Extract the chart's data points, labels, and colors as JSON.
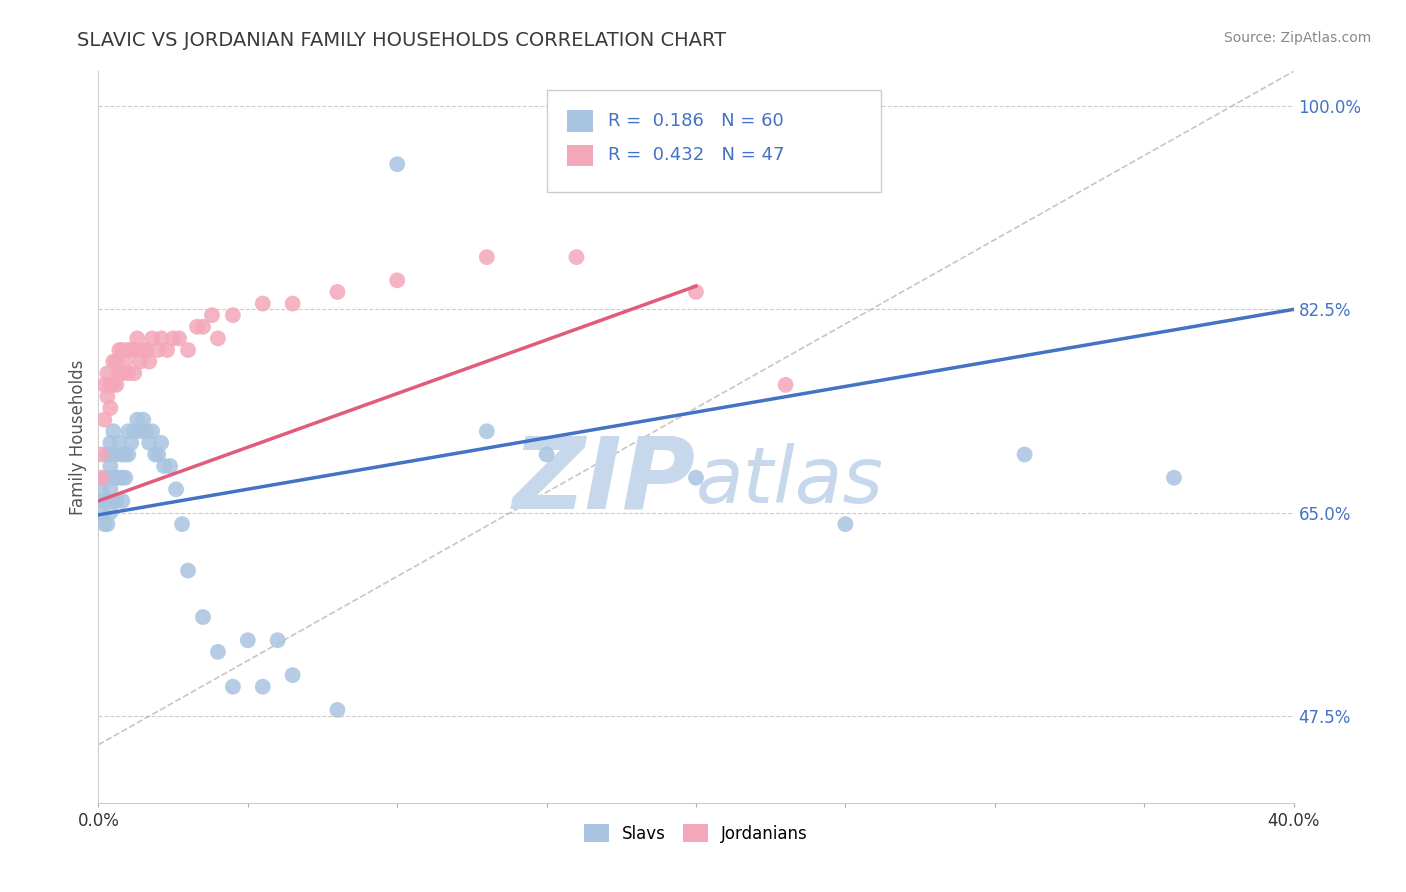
{
  "title": "SLAVIC VS JORDANIAN FAMILY HOUSEHOLDS CORRELATION CHART",
  "source": "Source: ZipAtlas.com",
  "ylabel": "Family Households",
  "xlim": [
    0.0,
    0.4
  ],
  "ylim": [
    0.4,
    1.03
  ],
  "ytick_positions": [
    0.475,
    0.65,
    0.825,
    1.0
  ],
  "ytick_labels": [
    "47.5%",
    "65.0%",
    "82.5%",
    "100.0%"
  ],
  "slavs_R": 0.186,
  "slavs_N": 60,
  "jordanians_R": 0.432,
  "jordanians_N": 47,
  "slavs_color": "#a8c4e0",
  "jordanians_color": "#f4a7b9",
  "slavs_line_color": "#4472c4",
  "jordanians_line_color": "#e05c7a",
  "ref_line_color": "#b8b8b8",
  "slavs_x": [
    0.001,
    0.001,
    0.002,
    0.002,
    0.002,
    0.003,
    0.003,
    0.003,
    0.003,
    0.004,
    0.004,
    0.004,
    0.004,
    0.005,
    0.005,
    0.005,
    0.005,
    0.006,
    0.006,
    0.006,
    0.007,
    0.007,
    0.008,
    0.008,
    0.008,
    0.009,
    0.009,
    0.01,
    0.01,
    0.011,
    0.012,
    0.013,
    0.014,
    0.015,
    0.016,
    0.017,
    0.018,
    0.019,
    0.02,
    0.021,
    0.022,
    0.024,
    0.026,
    0.028,
    0.03,
    0.035,
    0.04,
    0.045,
    0.05,
    0.055,
    0.06,
    0.065,
    0.08,
    0.1,
    0.13,
    0.15,
    0.2,
    0.25,
    0.31,
    0.36
  ],
  "slavs_y": [
    0.67,
    0.65,
    0.68,
    0.66,
    0.64,
    0.7,
    0.68,
    0.66,
    0.64,
    0.71,
    0.69,
    0.67,
    0.65,
    0.72,
    0.7,
    0.68,
    0.66,
    0.7,
    0.68,
    0.66,
    0.71,
    0.68,
    0.7,
    0.68,
    0.66,
    0.7,
    0.68,
    0.72,
    0.7,
    0.71,
    0.72,
    0.73,
    0.72,
    0.73,
    0.72,
    0.71,
    0.72,
    0.7,
    0.7,
    0.71,
    0.69,
    0.69,
    0.67,
    0.64,
    0.6,
    0.56,
    0.53,
    0.5,
    0.54,
    0.5,
    0.54,
    0.51,
    0.48,
    0.95,
    0.72,
    0.7,
    0.68,
    0.64,
    0.7,
    0.68
  ],
  "jordanians_x": [
    0.001,
    0.001,
    0.002,
    0.002,
    0.003,
    0.003,
    0.004,
    0.004,
    0.005,
    0.005,
    0.006,
    0.006,
    0.007,
    0.007,
    0.008,
    0.008,
    0.009,
    0.01,
    0.01,
    0.011,
    0.012,
    0.012,
    0.013,
    0.014,
    0.015,
    0.016,
    0.017,
    0.018,
    0.02,
    0.021,
    0.023,
    0.025,
    0.027,
    0.03,
    0.033,
    0.035,
    0.038,
    0.04,
    0.045,
    0.055,
    0.065,
    0.08,
    0.1,
    0.13,
    0.16,
    0.2,
    0.23
  ],
  "jordanians_y": [
    0.7,
    0.68,
    0.76,
    0.73,
    0.77,
    0.75,
    0.76,
    0.74,
    0.78,
    0.76,
    0.78,
    0.76,
    0.79,
    0.77,
    0.79,
    0.77,
    0.78,
    0.79,
    0.77,
    0.79,
    0.79,
    0.77,
    0.8,
    0.78,
    0.79,
    0.79,
    0.78,
    0.8,
    0.79,
    0.8,
    0.79,
    0.8,
    0.8,
    0.79,
    0.81,
    0.81,
    0.82,
    0.8,
    0.82,
    0.83,
    0.83,
    0.84,
    0.85,
    0.87,
    0.87,
    0.84,
    0.76
  ],
  "slavs_line_x0": 0.0,
  "slavs_line_x1": 0.4,
  "slavs_line_y0": 0.648,
  "slavs_line_y1": 0.825,
  "jordanians_line_x0": 0.0,
  "jordanians_line_x1": 0.2,
  "jordanians_line_y0": 0.66,
  "jordanians_line_y1": 0.845,
  "watermark_zip": "ZIP",
  "watermark_atlas": "atlas",
  "watermark_color": "#c8d8ec",
  "background_color": "#ffffff",
  "grid_color": "#cccccc",
  "title_color": "#3a3a3a",
  "axis_label_color": "#555555",
  "tick_label_color_right": "#4472c4",
  "legend_color": "#4472c4"
}
